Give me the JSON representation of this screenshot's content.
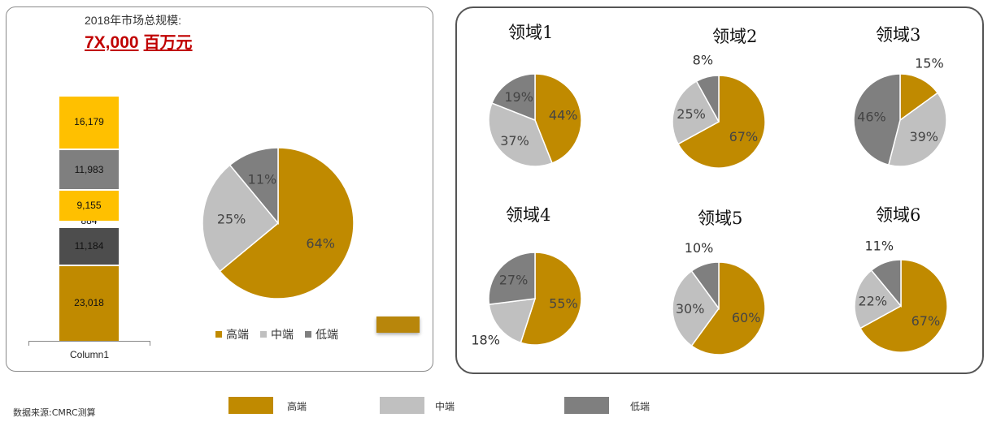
{
  "total": {
    "caption": "2018年市场总规模:",
    "value": "7X,000",
    "unit": "百万元"
  },
  "colors": {
    "high": "#c08a00",
    "mid": "#c0c0c0",
    "low": "#7f7f7f",
    "yellow": "#ffc000",
    "dark": "#4d4d4d"
  },
  "source": "数据来源:CMRC测算",
  "legend": {
    "high": "高端",
    "mid": "中端",
    "low": "低端"
  },
  "chart_data": [
    {
      "type": "bar",
      "categories": [
        "Column1"
      ],
      "series": [
        {
          "values": [
            23018
          ],
          "label": "23,018"
        },
        {
          "values": [
            11184
          ],
          "label": "11,184"
        },
        {
          "values": [
            884
          ],
          "label": "884"
        },
        {
          "values": [
            9155
          ],
          "label": "9,155"
        },
        {
          "values": [
            11983
          ],
          "label": "11,983"
        },
        {
          "values": [
            16179
          ],
          "label": "16,179"
        }
      ]
    },
    {
      "type": "pie",
      "labels": [
        "高端",
        "中端",
        "低端"
      ],
      "values": [
        64,
        25,
        11
      ]
    },
    {
      "type": "pie",
      "title": "领域1",
      "labels": [
        "高端",
        "中端",
        "低端"
      ],
      "values": [
        44,
        37,
        19
      ]
    },
    {
      "type": "pie",
      "title": "领域2",
      "labels": [
        "高端",
        "中端",
        "低端"
      ],
      "values": [
        67,
        25,
        8
      ]
    },
    {
      "type": "pie",
      "title": "领域3",
      "labels": [
        "高端",
        "中端",
        "低端"
      ],
      "values": [
        15,
        39,
        46
      ]
    },
    {
      "type": "pie",
      "title": "领域4",
      "labels": [
        "高端",
        "中端",
        "低端"
      ],
      "values": [
        55,
        18,
        27
      ]
    },
    {
      "type": "pie",
      "title": "领域5",
      "labels": [
        "高端",
        "中端",
        "低端"
      ],
      "values": [
        60,
        30,
        10
      ]
    },
    {
      "type": "pie",
      "title": "领域6",
      "labels": [
        "高端",
        "中端",
        "低端"
      ],
      "values": [
        67,
        22,
        11
      ]
    }
  ]
}
